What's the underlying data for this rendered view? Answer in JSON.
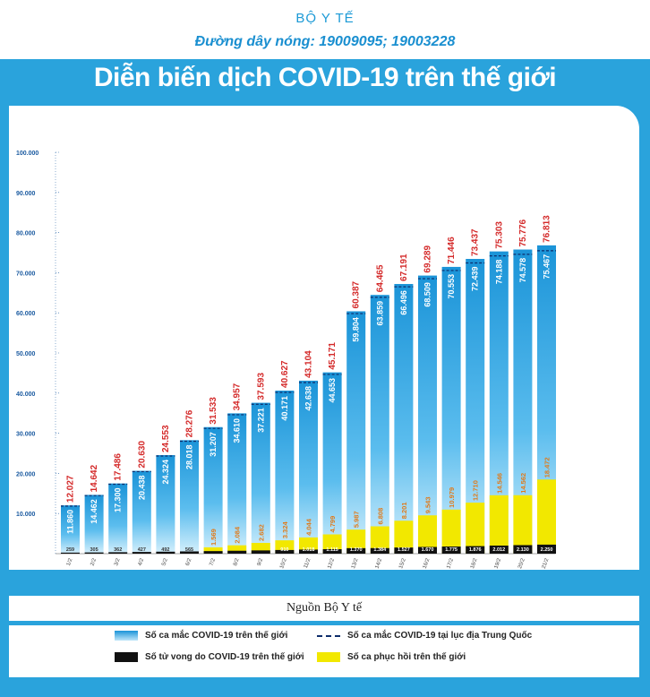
{
  "header": {
    "ministry": "BỘ Y TẾ",
    "hotline": "Đường dây nóng: 19009095; 19003228",
    "title": "Diễn biến  dịch COVID-19 trên thế giới"
  },
  "source": "Nguồn Bộ Y tế",
  "legend": {
    "world_cases": "Số ca mắc COVID-19 trên thế giới",
    "china_cases": "Số ca mắc COVID-19 tại  lục địa Trung Quốc",
    "deaths": "Số tử vong do COVID-19 trên thế giới",
    "recovered": "Số ca phục hồi trên thế giới"
  },
  "colors": {
    "background": "#2aa3dc",
    "cases_bar": "#3aaee6",
    "china_dash": "#0d2c6b",
    "deaths": "#111111",
    "recovered": "#f2e800",
    "total_label": "#d42a2a",
    "recovered_label": "#e07a1a"
  },
  "chart_data": {
    "type": "bar",
    "ylim": [
      0,
      100000
    ],
    "y_ticks": [
      "10.000",
      "20.000",
      "30.000",
      "40.000",
      "50.000",
      "60.000",
      "70.000",
      "80.000",
      "90.000",
      "100.000"
    ],
    "y_tick_values": [
      10000,
      20000,
      30000,
      40000,
      50000,
      60000,
      70000,
      80000,
      90000,
      100000
    ],
    "categories": [
      "1/2",
      "2/2",
      "3/2",
      "4/2",
      "5/2",
      "6/2",
      "7/2",
      "8/2",
      "9/2",
      "10/2",
      "11/2",
      "12/2",
      "13/2",
      "14/2",
      "15/2",
      "16/2",
      "17/2",
      "18/2",
      "19/2",
      "20/2",
      "21/2"
    ],
    "series": [
      {
        "name": "Số ca mắc COVID-19 trên thế giới",
        "values": [
          12027,
          14642,
          17486,
          20630,
          24553,
          28276,
          31533,
          34957,
          37593,
          40627,
          43104,
          45171,
          60387,
          64465,
          67191,
          69289,
          71446,
          73437,
          75303,
          75776,
          76813
        ],
        "labels": [
          "12.027",
          "14.642",
          "17.486",
          "20.630",
          "24.553",
          "28.276",
          "31.533",
          "34.957",
          "37.593",
          "40.627",
          "43.104",
          "45.171",
          "60.387",
          "64.465",
          "67.191",
          "69.289",
          "71.446",
          "73.437",
          "75.303",
          "75.776",
          "76.813"
        ]
      },
      {
        "name": "Số ca mắc COVID-19 tại  lục địa Trung Quốc",
        "values": [
          11860,
          14462,
          17300,
          20438,
          24324,
          28018,
          31207,
          34610,
          37221,
          40171,
          42638,
          44653,
          59804,
          63859,
          66496,
          68509,
          70553,
          72439,
          74188,
          74578,
          75467
        ],
        "labels": [
          "11.860",
          "14.462",
          "17.300",
          "20.438",
          "24.324",
          "28.018",
          "31.207",
          "34.610",
          "37.221",
          "40.171",
          "42.638",
          "44.653",
          "59.804",
          "63.859",
          "66.496",
          "68.509",
          "70.553",
          "72.439",
          "74.188",
          "74.578",
          "75.467"
        ]
      },
      {
        "name": "Số ca phục hồi trên thế giới",
        "values": [
          null,
          null,
          null,
          null,
          null,
          null,
          1569,
          2084,
          2682,
          3324,
          4044,
          4799,
          5987,
          6808,
          8201,
          9543,
          10979,
          12710,
          14546,
          14562,
          18472
        ],
        "labels": [
          "",
          "",
          "",
          "",
          "",
          "",
          "1.569",
          "2.084",
          "2.682",
          "3.324",
          "4.044",
          "4.799",
          "5.987",
          "6.808",
          "8.201",
          "9.543",
          "10.979",
          "12.710",
          "14.546",
          "14.562",
          "18.472"
        ]
      },
      {
        "name": "Số tử vong do COVID-19 trên thế giới",
        "values": [
          259,
          305,
          362,
          427,
          492,
          565,
          638,
          724,
          813,
          910,
          1018,
          1115,
          1370,
          1384,
          1527,
          1670,
          1775,
          1876,
          2012,
          2130,
          2250
        ],
        "labels": [
          "259",
          "305",
          "362",
          "427",
          "492",
          "565",
          "",
          "",
          "",
          "910",
          "1.018",
          "1.115",
          "1.370",
          "1.384",
          "1.527",
          "1.670",
          "1.775",
          "1.876",
          "2.012",
          "2.130",
          "2.250"
        ]
      }
    ]
  }
}
